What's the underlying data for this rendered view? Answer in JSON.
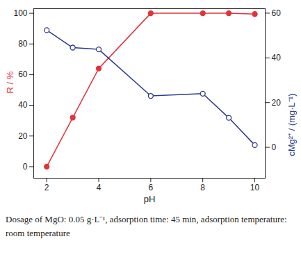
{
  "chart_data": {
    "type": "line",
    "x_label": "pH",
    "y_label": "R / %",
    "y2_label": "cMg²⁺ / (mg·L⁻¹)",
    "caption": "Dosage of MgO: 0.05 g·L⁻¹, adsorption time: 45 min, adsorption temperature: room temperature",
    "x": [
      2,
      3,
      4,
      6,
      8,
      9,
      10
    ],
    "xlim": [
      1.5,
      10.4
    ],
    "xticks": [
      2,
      4,
      6,
      8,
      10
    ],
    "ylim": [
      -7.5,
      103
    ],
    "yticks": [
      0,
      20,
      40,
      60,
      80,
      100
    ],
    "y2lim": [
      -13.8,
      62
    ],
    "y2ticks": [
      0,
      20,
      40,
      60
    ],
    "series": [
      {
        "name": "R",
        "color": "#e3323b",
        "marker": "circle",
        "line_style": "solid",
        "values": [
          0,
          32,
          64,
          100,
          100,
          100,
          99.5
        ]
      },
      {
        "name": "cMg²⁺",
        "color": "#2b3a8c",
        "marker": "circle-open",
        "line_style": "solid",
        "axis": "y2",
        "values": [
          52.4,
          44.6,
          43.8,
          23,
          24,
          13.2,
          1
        ]
      }
    ]
  }
}
